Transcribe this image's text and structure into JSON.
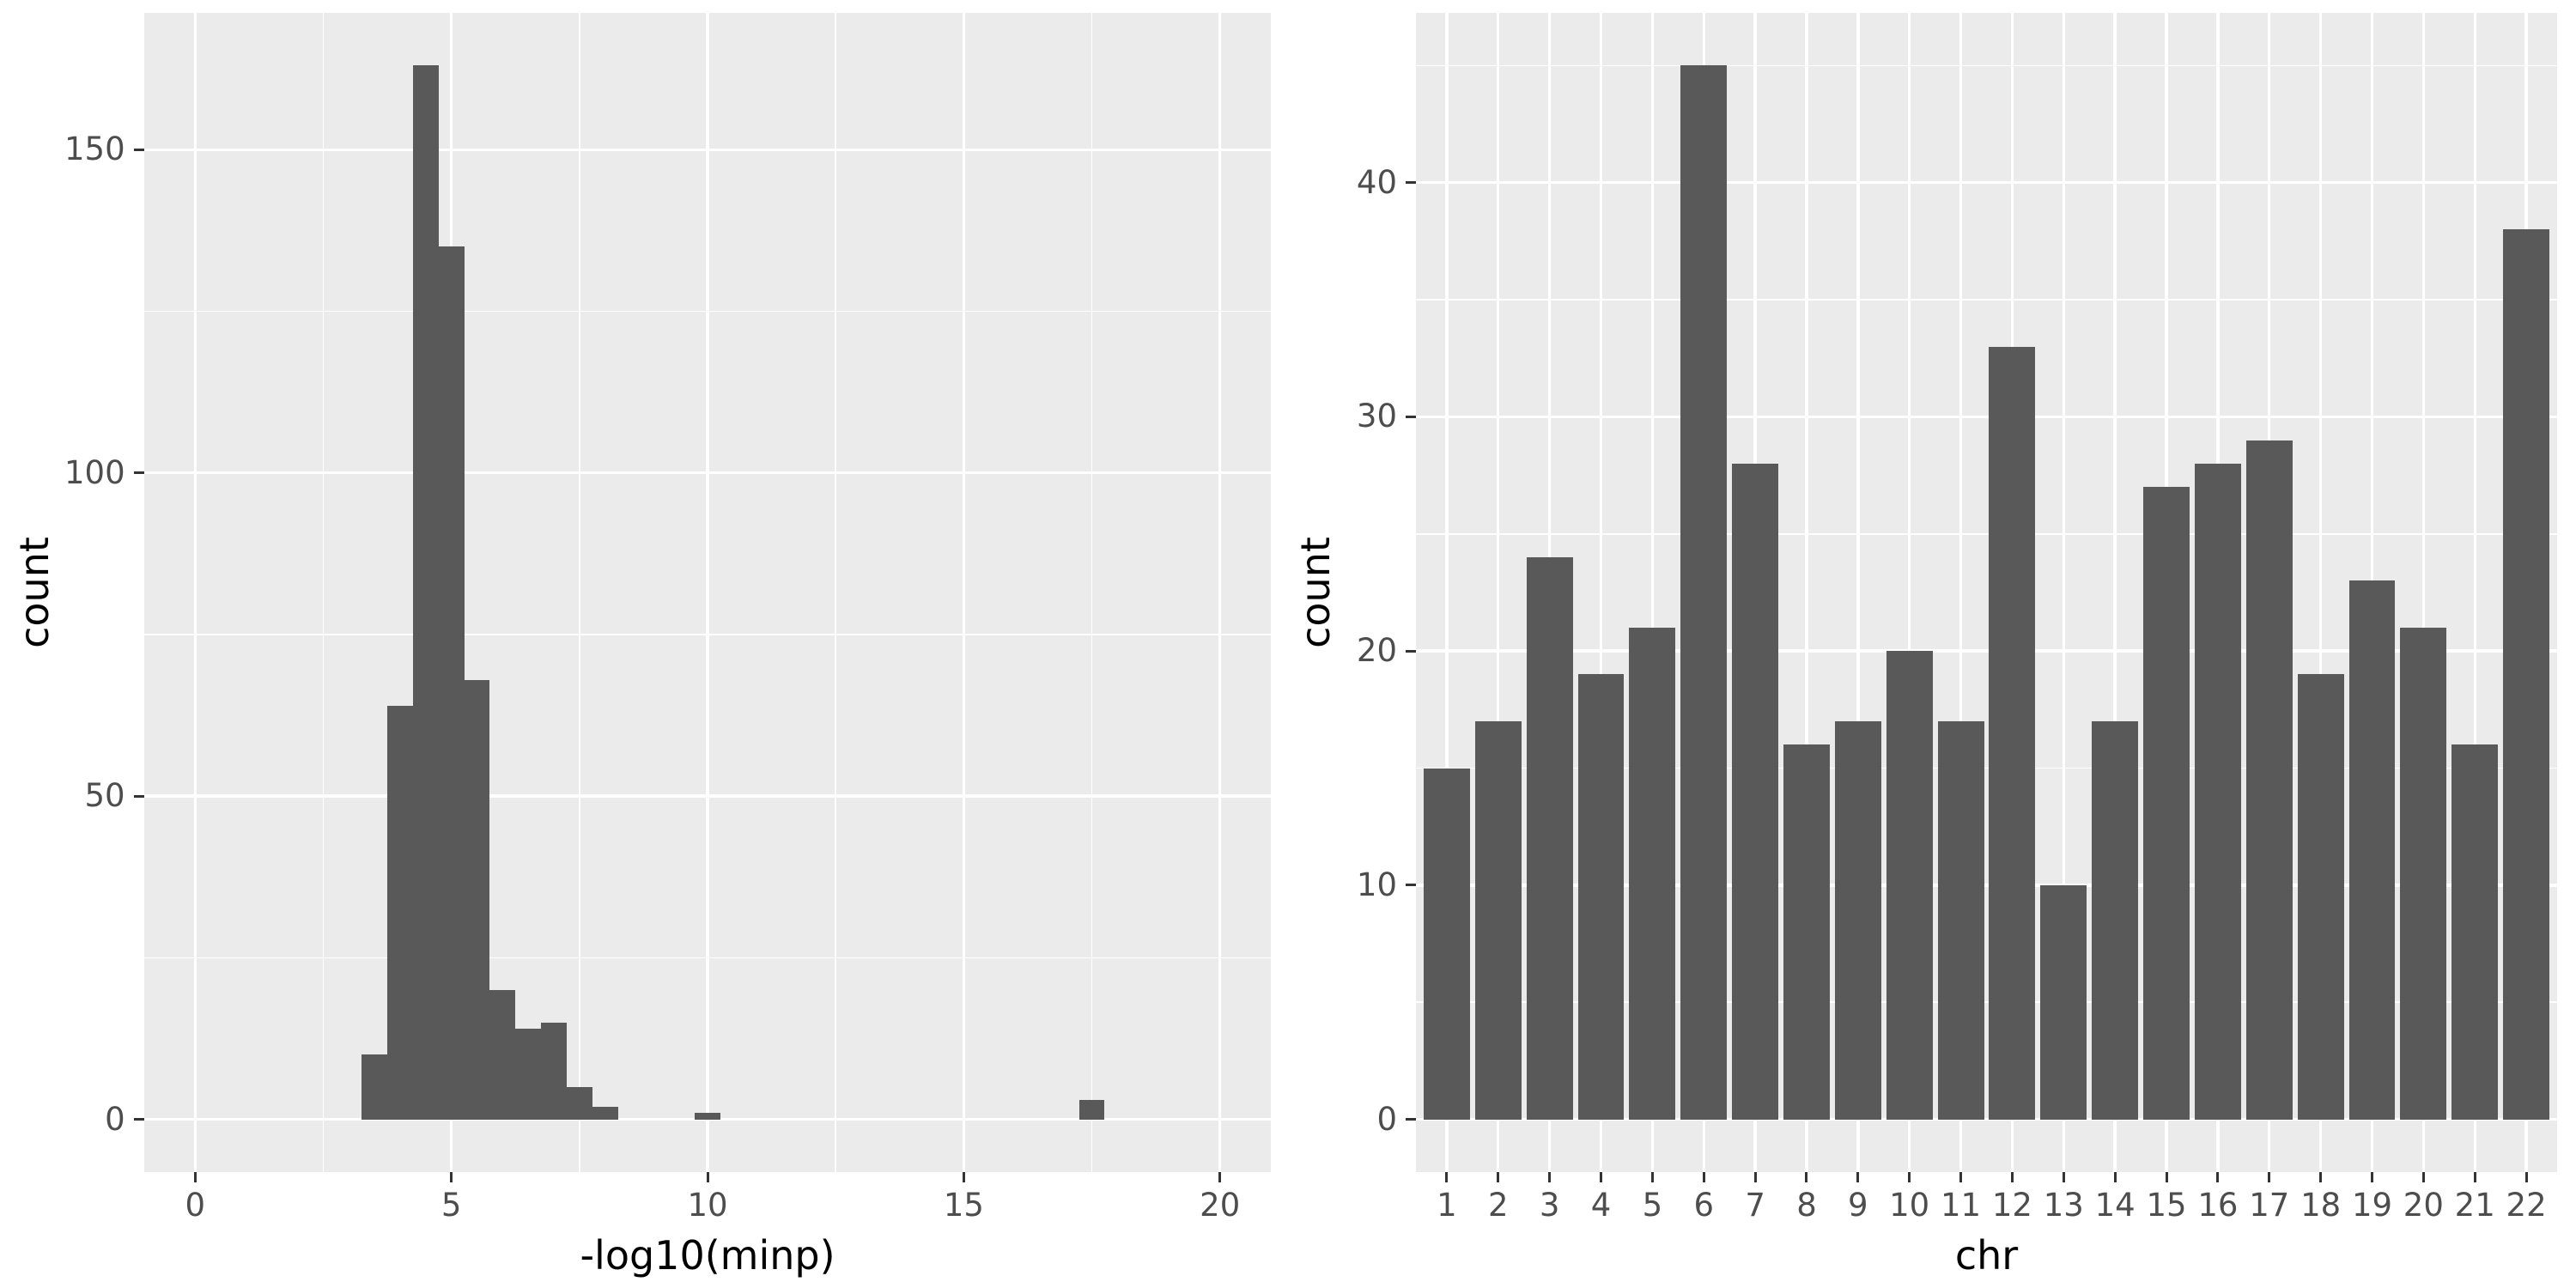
{
  "colors": {
    "page_background": "#FFFFFF",
    "panel_background": "#EBEBEB",
    "gridline": "#FFFFFF",
    "bar_fill": "#595959",
    "tick_mark": "#333333",
    "tick_label_text": "#4D4D4D",
    "axis_title_text": "#000000"
  },
  "chart_data": [
    {
      "type": "bar",
      "subtype": "histogram",
      "title": "",
      "xlabel": "-log10(minp)",
      "ylabel": "count",
      "bin_width": 0.5,
      "bins": [
        {
          "x0": 3.25,
          "x1": 3.75,
          "count": 10
        },
        {
          "x0": 3.75,
          "x1": 4.25,
          "count": 64
        },
        {
          "x0": 4.25,
          "x1": 4.75,
          "count": 163
        },
        {
          "x0": 4.75,
          "x1": 5.25,
          "count": 135
        },
        {
          "x0": 5.25,
          "x1": 5.75,
          "count": 68
        },
        {
          "x0": 5.75,
          "x1": 6.25,
          "count": 20
        },
        {
          "x0": 6.25,
          "x1": 6.75,
          "count": 14
        },
        {
          "x0": 6.75,
          "x1": 7.25,
          "count": 15
        },
        {
          "x0": 7.25,
          "x1": 7.75,
          "count": 5
        },
        {
          "x0": 7.75,
          "x1": 8.25,
          "count": 2
        },
        {
          "x0": 9.75,
          "x1": 10.25,
          "count": 1
        },
        {
          "x0": 17.25,
          "x1": 17.75,
          "count": 3
        }
      ],
      "x_ticks": [
        0,
        5,
        10,
        15,
        20
      ],
      "x_tick_labels": [
        "0",
        "5",
        "10",
        "15",
        "20"
      ],
      "x_minor_ticks": [
        2.5,
        7.5,
        12.5,
        17.5
      ],
      "y_ticks": [
        0,
        50,
        100,
        150
      ],
      "y_tick_labels": [
        "0",
        "50",
        "100",
        "150"
      ],
      "y_minor_ticks": [
        25,
        75,
        125
      ],
      "xlim": [
        -1,
        21
      ],
      "ylim": [
        -8.15,
        171.15
      ],
      "grid": true,
      "legend": "none"
    },
    {
      "type": "bar",
      "subtype": "categorical",
      "title": "",
      "xlabel": "chr",
      "ylabel": "count",
      "categories": [
        "1",
        "2",
        "3",
        "4",
        "5",
        "6",
        "7",
        "8",
        "9",
        "10",
        "11",
        "12",
        "13",
        "14",
        "15",
        "16",
        "17",
        "18",
        "19",
        "20",
        "21",
        "22"
      ],
      "values": [
        15,
        17,
        24,
        19,
        21,
        45,
        28,
        16,
        17,
        20,
        17,
        33,
        10,
        17,
        27,
        28,
        29,
        19,
        23,
        21,
        16,
        38
      ],
      "bar_rel_width": 0.9,
      "y_ticks": [
        0,
        10,
        20,
        30,
        40
      ],
      "y_tick_labels": [
        "0",
        "10",
        "20",
        "30",
        "40"
      ],
      "y_minor_ticks": [
        5,
        15,
        25,
        35,
        45
      ],
      "xlim": [
        0.4,
        22.6
      ],
      "ylim": [
        -2.25,
        47.25
      ],
      "grid": true,
      "legend": "none"
    }
  ]
}
